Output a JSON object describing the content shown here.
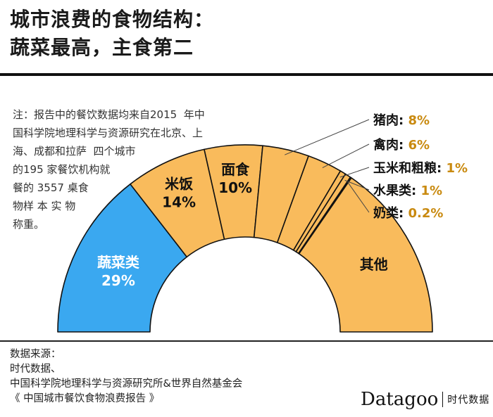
{
  "title_lines": [
    "城市浪费的食物结构：",
    "蔬菜最高，主食第二"
  ],
  "note_lines": [
    "注：报告中的餐饮数据均来自2015  年中",
    "国科学院地理科学与资源研究在北京、上",
    "海、成都和拉萨  四个城市",
    "的195 家餐饮机构就",
    "餐的 3557 桌食",
    "物样 本 实 物",
    "称重。"
  ],
  "source_lines": [
    "数据来源：",
    "时代数据、",
    "中国科学院地理科学与资源研究所&世界自然基金会",
    "《 中国城市餐饮食物浪费报告 》"
  ],
  "brand": {
    "name": "Datagoo",
    "sub": "时代数据"
  },
  "colors": {
    "highlight": "#3aa8f0",
    "others": "#f9bb5c",
    "value_text": "#c98a10",
    "stroke": "#111111"
  },
  "chart_data": {
    "type": "pie",
    "shape": "half-donut",
    "categories": [
      "蔬菜类",
      "米饭",
      "面食",
      "猪肉",
      "禽肉",
      "玉米和粗粮",
      "水果类",
      "奶类",
      "其他"
    ],
    "values": [
      29,
      14,
      10,
      8,
      6,
      1,
      1,
      0.2,
      30.8
    ],
    "display_values": [
      "29%",
      "14%",
      "10%",
      "8%",
      "6%",
      "1%",
      "1%",
      "0.2%",
      ""
    ],
    "inside_labels": [
      0,
      1,
      2,
      8
    ],
    "outside_labels": [
      3,
      4,
      5,
      6,
      7
    ]
  }
}
